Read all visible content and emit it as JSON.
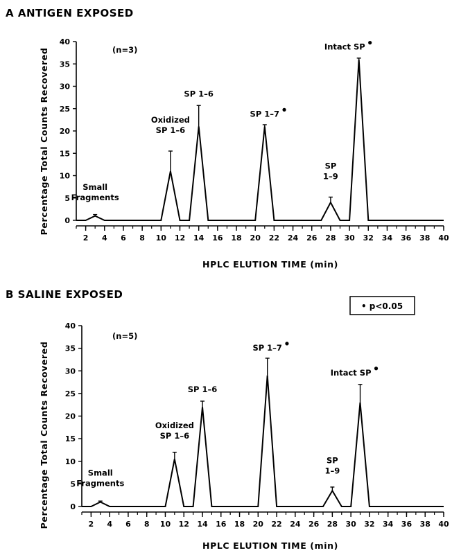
{
  "chart_data": [
    {
      "type": "line",
      "panel_label": "A ANTIGEN EXPOSED",
      "sample_size": "(n=3)",
      "xlabel": "HPLC ELUTION TIME (min)",
      "ylabel": "Percentage Total Counts Recovered",
      "xlim": [
        1,
        40
      ],
      "ylim": [
        0,
        40
      ],
      "x_ticks": [
        2,
        4,
        6,
        8,
        10,
        12,
        14,
        16,
        18,
        20,
        22,
        24,
        26,
        28,
        30,
        32,
        34,
        36,
        38,
        40
      ],
      "y_ticks": [
        0,
        5,
        10,
        15,
        20,
        25,
        30,
        35,
        40
      ],
      "grid": false,
      "series": [
        {
          "x": [
            1,
            2,
            3,
            4,
            10,
            11,
            12,
            13,
            14,
            15,
            20,
            21,
            22,
            27,
            28,
            29,
            30,
            31,
            32,
            40
          ],
          "y": [
            0,
            0,
            1,
            0,
            0,
            11,
            0,
            0,
            21,
            0,
            0,
            21,
            0,
            0,
            4,
            0,
            0,
            36,
            0,
            0
          ]
        }
      ],
      "error_bars": [
        {
          "x": 3,
          "y": 1,
          "upper": 1.3
        },
        {
          "x": 11,
          "y": 11,
          "upper": 15.5
        },
        {
          "x": 14,
          "y": 21,
          "upper": 25.7
        },
        {
          "x": 21,
          "y": 21,
          "upper": 21.4
        },
        {
          "x": 28,
          "y": 4,
          "upper": 5.2
        },
        {
          "x": 31,
          "y": 36,
          "upper": 36.3
        }
      ],
      "peak_labels": [
        {
          "lines": [
            "Small",
            "Fragments"
          ],
          "x": 3,
          "y": 4.5,
          "asterisk": false
        },
        {
          "lines": [
            "Oxidized",
            "SP 1–6"
          ],
          "x": 11,
          "y": 19.5,
          "asterisk": false
        },
        {
          "lines": [
            "SP 1–6"
          ],
          "x": 14,
          "y": 27.7,
          "asterisk": false
        },
        {
          "lines": [
            "SP 1–7"
          ],
          "x": 21,
          "y": 23.2,
          "asterisk": true
        },
        {
          "lines": [
            "SP",
            "1–9"
          ],
          "x": 28,
          "y": 9.2,
          "asterisk": false
        },
        {
          "lines": [
            "Intact SP"
          ],
          "x": 29.5,
          "y": 38.2,
          "asterisk": true
        }
      ]
    },
    {
      "type": "line",
      "panel_label": "B SALINE EXPOSED",
      "sample_size": "(n=5)",
      "xlabel": "HPLC ELUTION TIME (min)",
      "ylabel": "Percentage Total Counts Recovered",
      "xlim": [
        1,
        40
      ],
      "ylim": [
        0,
        40
      ],
      "x_ticks": [
        2,
        4,
        6,
        8,
        10,
        12,
        14,
        16,
        18,
        20,
        22,
        24,
        26,
        28,
        30,
        32,
        34,
        36,
        38,
        40
      ],
      "y_ticks": [
        0,
        5,
        10,
        15,
        20,
        25,
        30,
        35,
        40
      ],
      "grid": false,
      "series": [
        {
          "x": [
            1,
            2,
            3,
            4,
            10,
            11,
            12,
            13,
            14,
            15,
            20,
            21,
            22,
            27,
            28,
            29,
            30,
            31,
            32,
            40
          ],
          "y": [
            0,
            0,
            1,
            0,
            0,
            10.5,
            0,
            0,
            22,
            0,
            0,
            29,
            0,
            0,
            3.5,
            0,
            0,
            23,
            0,
            0
          ]
        }
      ],
      "error_bars": [
        {
          "x": 3,
          "y": 1,
          "upper": 1.2
        },
        {
          "x": 11,
          "y": 10.5,
          "upper": 12
        },
        {
          "x": 14,
          "y": 22,
          "upper": 23.3
        },
        {
          "x": 21,
          "y": 29,
          "upper": 32.8
        },
        {
          "x": 28,
          "y": 3.5,
          "upper": 4.3
        },
        {
          "x": 31,
          "y": 23,
          "upper": 27
        }
      ],
      "peak_labels": [
        {
          "lines": [
            "Small",
            "Fragments"
          ],
          "x": 3,
          "y": 4.5,
          "asterisk": false
        },
        {
          "lines": [
            "Oxidized",
            "SP 1–6"
          ],
          "x": 11,
          "y": 15,
          "asterisk": false
        },
        {
          "lines": [
            "SP 1–6"
          ],
          "x": 14,
          "y": 25.3,
          "asterisk": false
        },
        {
          "lines": [
            "SP 1–7"
          ],
          "x": 21,
          "y": 34.5,
          "asterisk": true
        },
        {
          "lines": [
            "SP",
            "1–9"
          ],
          "x": 28,
          "y": 7.3,
          "asterisk": false
        },
        {
          "lines": [
            "Intact SP"
          ],
          "x": 30,
          "y": 29,
          "asterisk": true
        }
      ]
    }
  ],
  "significance_legend": "• p<0.05"
}
